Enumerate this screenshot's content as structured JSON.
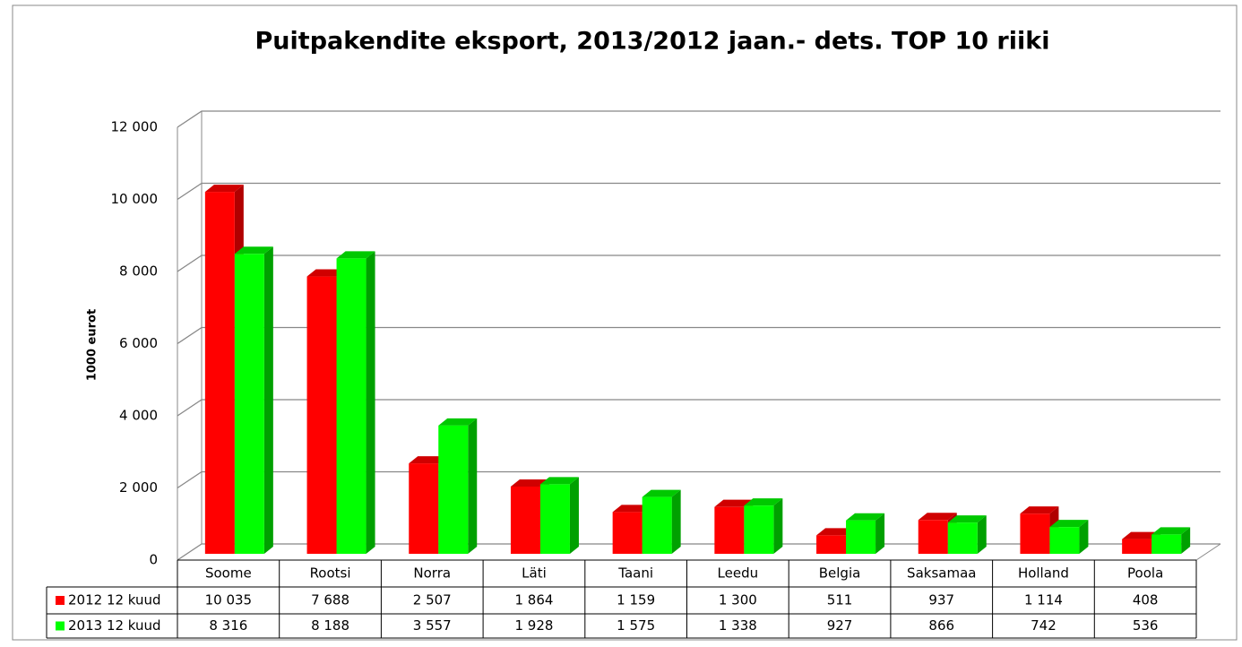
{
  "chart_data": {
    "type": "bar3d",
    "title": "Puitpakendite eksport, 2013/2012 jaan.- dets. TOP 10 riiki",
    "y_label": "1000 eurot",
    "categories": [
      "Soome",
      "Rootsi",
      "Norra",
      "Läti",
      "Taani",
      "Leedu",
      "Belgia",
      "Saksamaa",
      "Holland",
      "Poola"
    ],
    "series": [
      {
        "name": "2012 12 kuud",
        "color": "#ff0000",
        "values": [
          10035,
          7688,
          2507,
          1864,
          1159,
          1300,
          511,
          937,
          1114,
          408
        ],
        "value_labels": [
          "10 035",
          "7 688",
          "2 507",
          "1 864",
          "1 159",
          "1 300",
          "511",
          "937",
          "1 114",
          "408"
        ]
      },
      {
        "name": "2013 12 kuud",
        "color": "#00ff00",
        "values": [
          8316,
          8188,
          3557,
          1928,
          1575,
          1338,
          927,
          866,
          742,
          536
        ],
        "value_labels": [
          "8 316",
          "8 188",
          "3 557",
          "1 928",
          "1 575",
          "1 338",
          "927",
          "866",
          "742",
          "536"
        ]
      }
    ],
    "ylim": [
      0,
      12000
    ],
    "yticks": [
      0,
      {
        "value": 2000,
        "label": "2 000"
      },
      {
        "value": 4000,
        "label": "4 000"
      },
      {
        "value": 6000,
        "label": "6 000"
      },
      {
        "value": 8000,
        "label": "8 000"
      },
      {
        "value": 10000,
        "label": "10 000"
      },
      {
        "value": 12000,
        "label": "12 000"
      }
    ],
    "grid": true
  }
}
